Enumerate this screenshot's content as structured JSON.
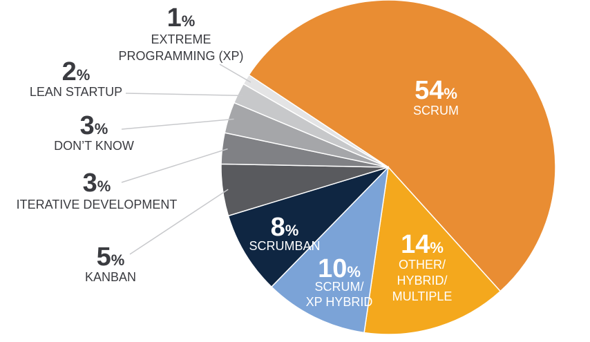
{
  "chart_data": {
    "type": "pie",
    "title": "",
    "legend": "none",
    "slices": [
      {
        "value": 54,
        "unit": "%",
        "label_lines": [
          "SCRUM"
        ],
        "color": "#e98d33"
      },
      {
        "value": 14,
        "unit": "%",
        "label_lines": [
          "OTHER/",
          "HYBRID/",
          "MULTIPLE"
        ],
        "color": "#f4a81d"
      },
      {
        "value": 10,
        "unit": "%",
        "label_lines": [
          "SCRUM/",
          "XP HYBRID"
        ],
        "color": "#7ba3d7"
      },
      {
        "value": 8,
        "unit": "%",
        "label_lines": [
          "SCRUMBAN"
        ],
        "color": "#0f2642"
      },
      {
        "value": 5,
        "unit": "%",
        "label_lines": [
          "KANBAN"
        ],
        "color": "#595a5e"
      },
      {
        "value": 3,
        "unit": "%",
        "label_lines": [
          "ITERATIVE DEVELOPMENT"
        ],
        "color": "#808185"
      },
      {
        "value": 3,
        "unit": "%",
        "label_lines": [
          "DON’T KNOW"
        ],
        "color": "#a5a6a9"
      },
      {
        "value": 2,
        "unit": "%",
        "label_lines": [
          "LEAN STARTUP"
        ],
        "color": "#c7c8ca"
      },
      {
        "value": 1,
        "unit": "%",
        "label_lines": [
          "EXTREME",
          "PROGRAMMING (XP)"
        ],
        "color": "#e4e4e5"
      }
    ]
  }
}
